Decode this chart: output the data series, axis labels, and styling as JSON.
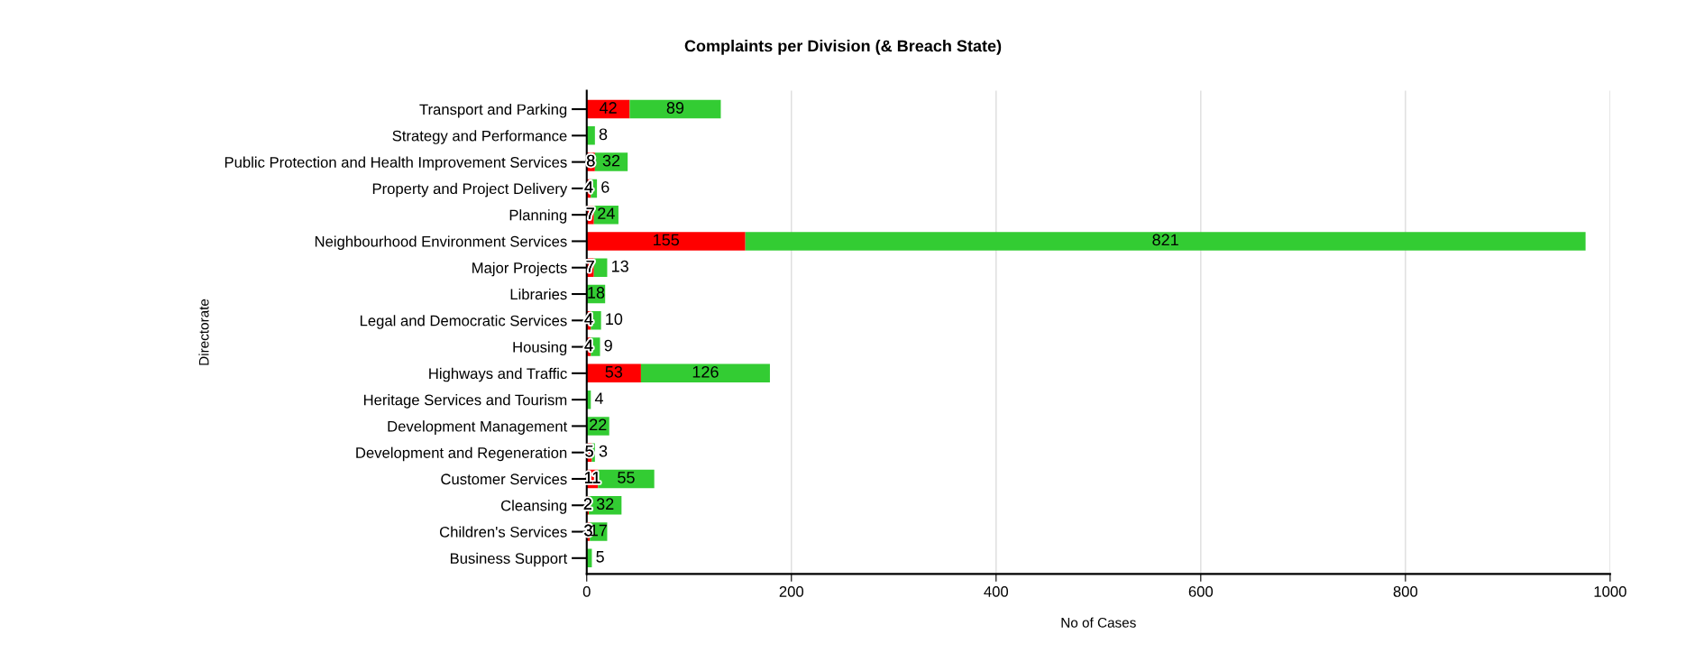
{
  "chart_data": {
    "type": "bar",
    "orientation": "horizontal",
    "stacked": true,
    "title": "Complaints per Division (& Breach State)",
    "xlabel": "No of Cases",
    "ylabel": "Directorate",
    "categories": [
      "Transport and Parking",
      "Strategy and Performance",
      "Public Protection and Health Improvement Services",
      "Property and Project Delivery",
      "Planning",
      "Neighbourhood Environment Services",
      "Major Projects",
      "Libraries",
      "Legal and Democratic Services",
      "Housing",
      "Highways and Traffic",
      "Heritage Services and Tourism",
      "Development Management",
      "Development and Regeneration",
      "Customer Services",
      "Cleansing",
      "Children's Services",
      "Business Support"
    ],
    "series": [
      {
        "color": "#ff0000",
        "values": [
          42,
          null,
          8,
          4,
          7,
          155,
          7,
          null,
          4,
          4,
          53,
          null,
          null,
          5,
          11,
          2,
          3,
          null
        ]
      },
      {
        "color": "#33cc33",
        "values": [
          89,
          8,
          32,
          6,
          24,
          821,
          13,
          18,
          10,
          9,
          126,
          4,
          22,
          3,
          55,
          32,
          17,
          5
        ]
      }
    ],
    "data_labels": true,
    "xlim": [
      0,
      1000
    ],
    "xticks": [
      0,
      200,
      400,
      600,
      800,
      1000
    ],
    "grid": "x",
    "legend": false
  }
}
